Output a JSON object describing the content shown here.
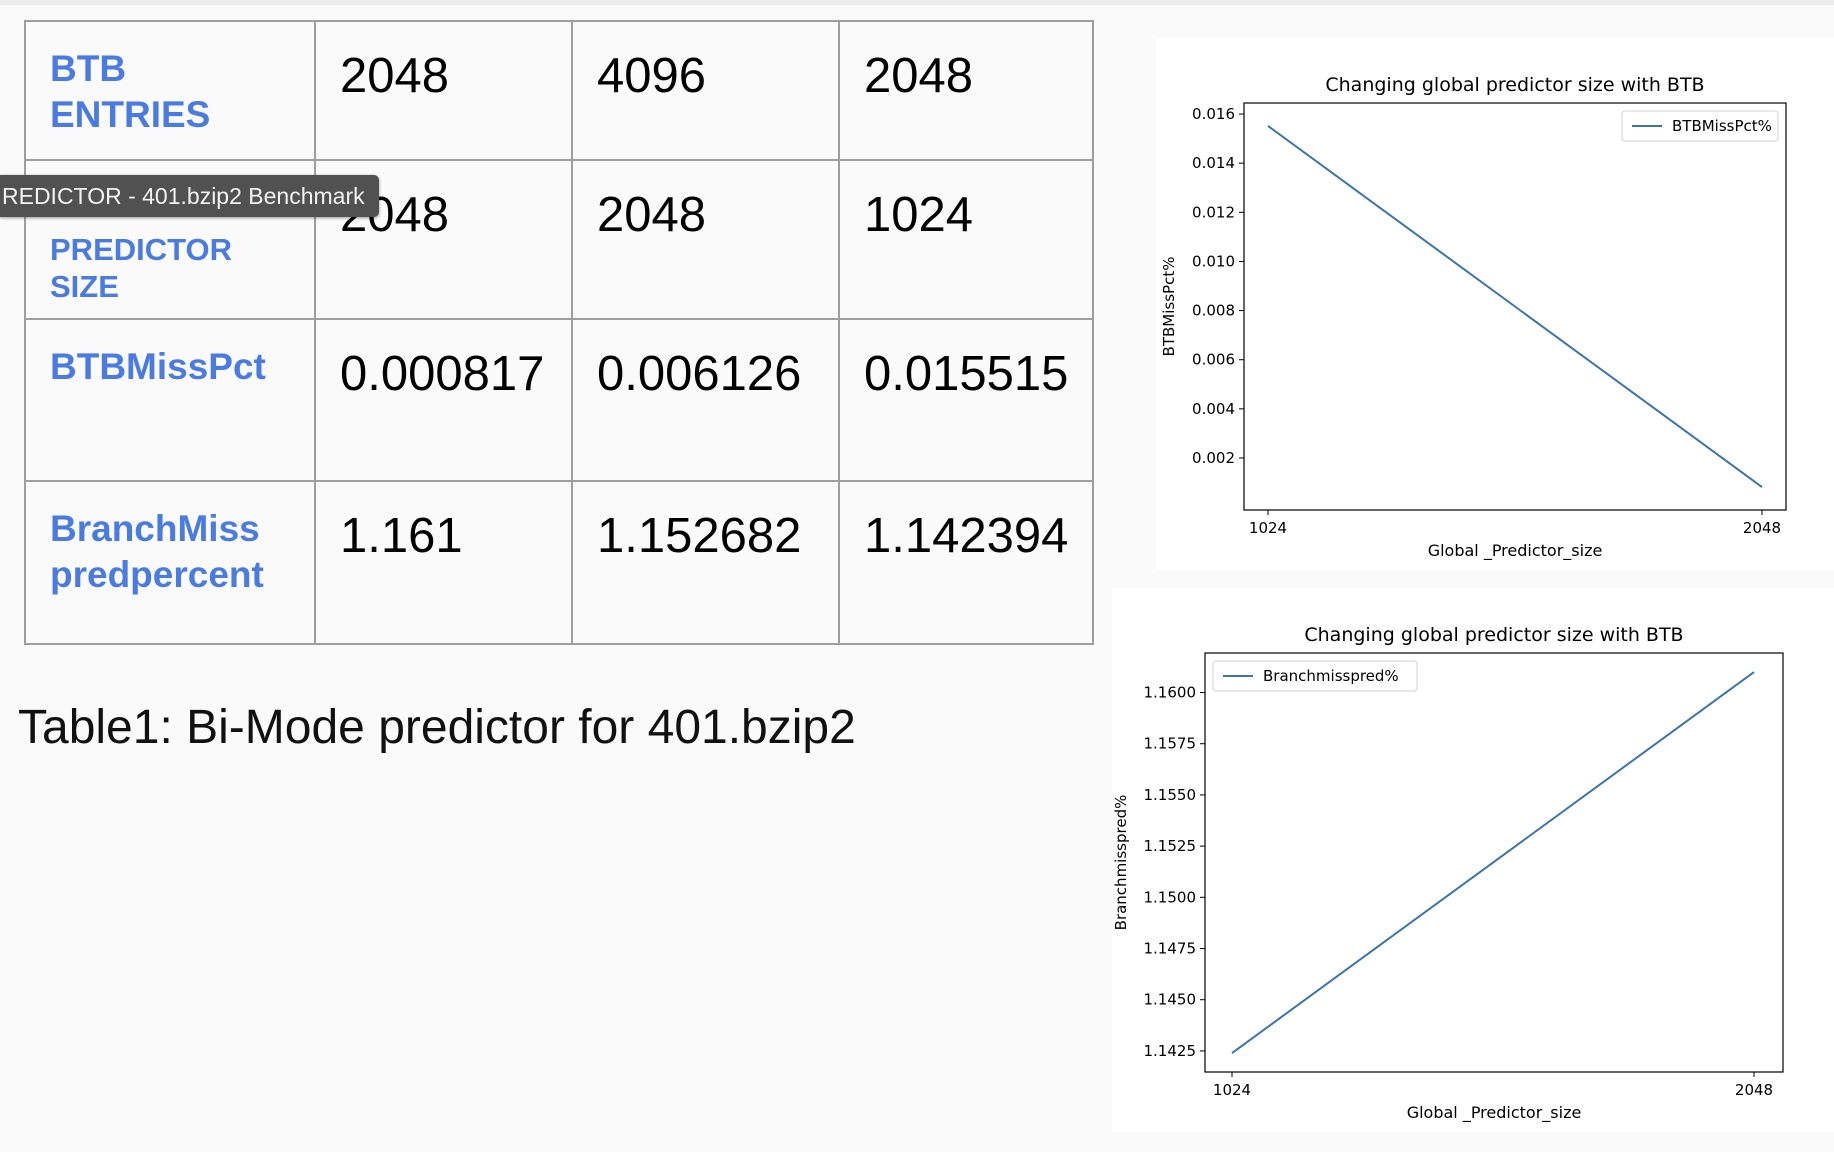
{
  "table": {
    "rows": [
      {
        "header_lines": [
          "BTB",
          "ENTRIES"
        ],
        "values": [
          "2048",
          "4096",
          "2048"
        ]
      },
      {
        "header_lines": [
          "PREDICTOR",
          "SIZE"
        ],
        "values": [
          "2048",
          "2048",
          "1024"
        ]
      },
      {
        "header_lines": [
          "BTBMissPct"
        ],
        "values": [
          "0.000817",
          "0.006126",
          "0.015515"
        ]
      },
      {
        "header_lines": [
          "BranchMiss",
          "predpercent"
        ],
        "values": [
          "1.161",
          "1.152682",
          "1.142394"
        ]
      }
    ]
  },
  "caption": "Table1: Bi-Mode predictor for 401.bzip2",
  "tooltip": "REDICTOR - 401.bzip2 Benchmark",
  "colors": {
    "header_text": "#4a7be0",
    "line": "#3b75af",
    "tooltip_bg": "#515151"
  },
  "chart_data": [
    {
      "type": "line",
      "title": "Changing global predictor size with BTB",
      "xlabel": "Global _Predictor_size",
      "ylabel": "BTBMissPct%",
      "x": [
        1024,
        2048
      ],
      "xticks": [
        "1024",
        "2048"
      ],
      "yticks": [
        "0.002",
        "0.004",
        "0.006",
        "0.008",
        "0.010",
        "0.012",
        "0.014",
        "0.016"
      ],
      "ylim": [
        -0.000118,
        0.01645
      ],
      "series": [
        {
          "name": "BTBMissPct%",
          "values": [
            0.015515,
            0.000817
          ]
        }
      ],
      "legend": "top-right",
      "grid": false
    },
    {
      "type": "line",
      "title": "Changing global predictor size with BTB",
      "xlabel": "Global _Predictor_size",
      "ylabel": "Branchmisspred%",
      "x": [
        1024,
        2048
      ],
      "xticks": [
        "1024",
        "2048"
      ],
      "yticks": [
        "1.1425",
        "1.1450",
        "1.1475",
        "1.1500",
        "1.1525",
        "1.1550",
        "1.1575",
        "1.1600"
      ],
      "ylim": [
        1.14147,
        1.16193
      ],
      "series": [
        {
          "name": "Branchmisspred%",
          "values": [
            1.142394,
            1.161
          ]
        }
      ],
      "legend": "top-left",
      "grid": false
    }
  ]
}
